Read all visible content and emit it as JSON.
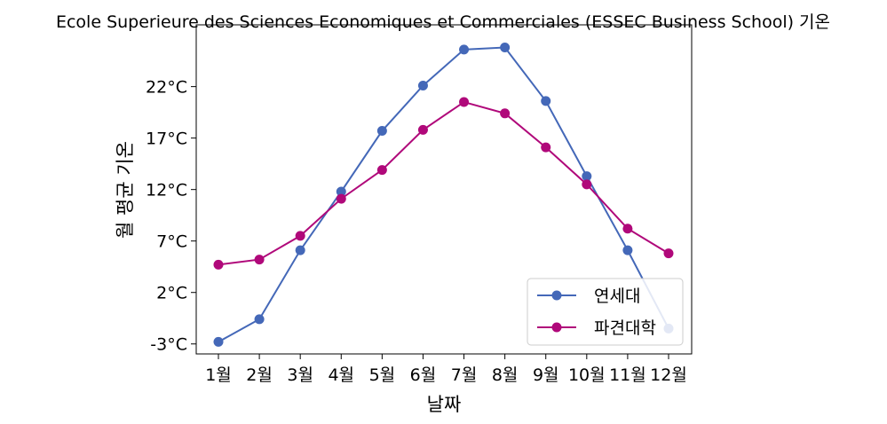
{
  "chart_data": {
    "type": "line",
    "title": "Ecole Superieure des Sciences Economiques et Commerciales (ESSEC Business School) 기온",
    "xlabel": "날짜",
    "ylabel": "월 평균 기온",
    "categories": [
      "1월",
      "2월",
      "3월",
      "4월",
      "5월",
      "6월",
      "7월",
      "8월",
      "9월",
      "10월",
      "11월",
      "12월"
    ],
    "y_ticks": [
      -3,
      2,
      7,
      12,
      17,
      22
    ],
    "y_tick_labels": [
      "-3°C",
      "2°C",
      "7°C",
      "12°C",
      "17°C",
      "22°C"
    ],
    "ylim": [
      -3.97,
      28.0
    ],
    "grid": false,
    "legend_position": "lower-right",
    "series": [
      {
        "name": "연세대",
        "color": "#4468b8",
        "values": [
          -2.8,
          -0.6,
          6.1,
          11.8,
          17.7,
          22.1,
          25.6,
          25.8,
          20.6,
          13.3,
          6.1,
          -1.5
        ]
      },
      {
        "name": "파견대학",
        "color": "#b0087a",
        "values": [
          4.7,
          5.2,
          7.5,
          11.1,
          13.9,
          17.8,
          20.5,
          19.4,
          16.1,
          12.5,
          8.2,
          5.8
        ]
      }
    ]
  }
}
